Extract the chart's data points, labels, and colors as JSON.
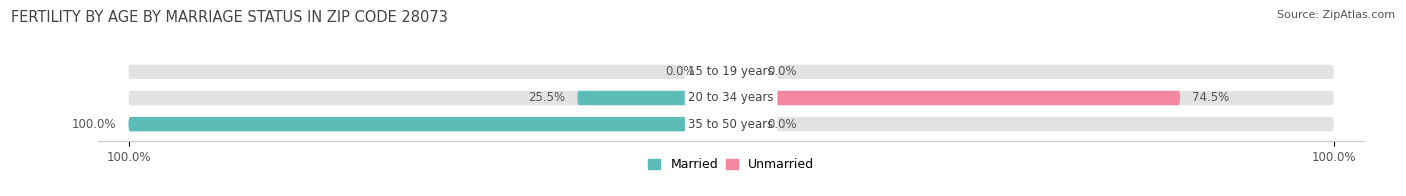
{
  "title": "FERTILITY BY AGE BY MARRIAGE STATUS IN ZIP CODE 28073",
  "source": "Source: ZipAtlas.com",
  "categories": [
    "15 to 19 years",
    "20 to 34 years",
    "35 to 50 years"
  ],
  "married": [
    0.0,
    25.5,
    100.0
  ],
  "unmarried": [
    0.0,
    74.5,
    0.0
  ],
  "married_color": "#5bbcb8",
  "unmarried_color": "#f487a0",
  "bar_bg_color": "#e2e2e2",
  "bar_height": 0.55,
  "xlim_left": -105,
  "xlim_right": 105,
  "title_fontsize": 10.5,
  "source_fontsize": 8,
  "label_fontsize": 8.5,
  "category_fontsize": 8.5,
  "tick_fontsize": 8.5,
  "legend_fontsize": 9,
  "bg_color": "#ffffff",
  "text_color": "#555555",
  "title_color": "#444444",
  "min_stub": 4.0
}
